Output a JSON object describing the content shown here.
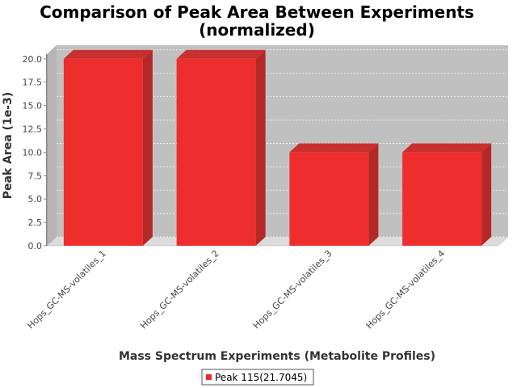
{
  "chart_data": {
    "type": "bar",
    "title": "Comparison of Peak Area Between Experiments",
    "subtitle": "(normalized)",
    "xlabel": "Mass Spectrum Experiments (Metabolite Profiles)",
    "ylabel": "Peak Area (1e-3)",
    "ylim": [
      0,
      20.5
    ],
    "yticks": [
      "0.0",
      "2.5",
      "5.0",
      "7.5",
      "10.0",
      "12.5",
      "15.0",
      "17.5",
      "20.0"
    ],
    "categories": [
      "Hops_GC-MS-volatiles_1",
      "Hops_GC-MS-volatiles_2",
      "Hops_GC-MS-volatiles_3",
      "Hops_GC-MS-volatiles_4"
    ],
    "series": [
      {
        "name": "Peak 115(21.7045)",
        "values": [
          20.0,
          20.0,
          10.0,
          10.0
        ],
        "color": "#ee2d2d"
      }
    ],
    "grid": true,
    "legend_position": "bottom",
    "colors": {
      "plot_background": "#c0c0c0",
      "bar_side": "#b42828",
      "bar_top": "#c83030",
      "floor": "#dcdcdc"
    }
  }
}
